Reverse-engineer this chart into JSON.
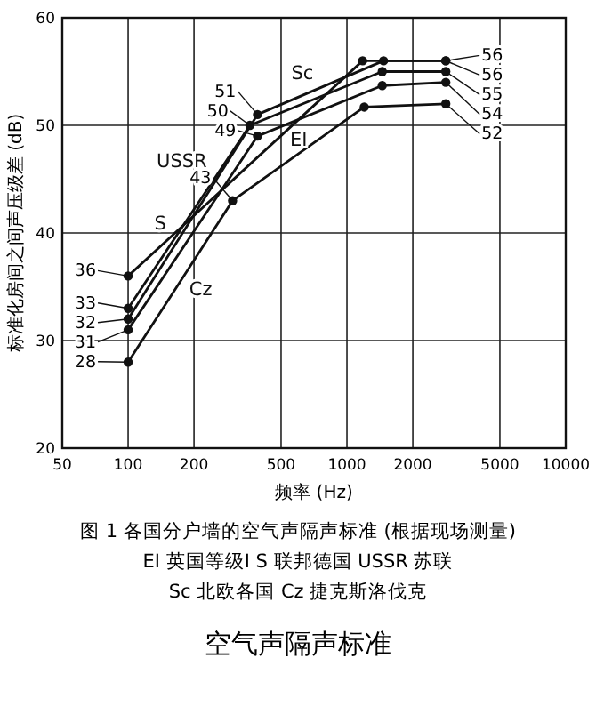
{
  "chart_data": {
    "type": "line",
    "title": "空气声隔声标准",
    "xlabel": "频率 (Hz)",
    "ylabel": "标准化房间之间声压级差 (dB)",
    "annotations": [
      "图 1  各国分户墙的空气声隔声标准 (根据现场测量)",
      "EI 英国等级Ⅰ  S 联邦德国  USSR 苏联",
      "Sc 北欧各国  Cz 捷克斯洛伐克"
    ],
    "log": "x",
    "xlim": [
      50,
      10000
    ],
    "xticks": [
      50,
      100,
      200,
      {
        "value": 500,
        "label": "500"
      },
      1000,
      2000,
      5000,
      10000
    ],
    "ylim": [
      20,
      60
    ],
    "yticks": [
      20,
      30,
      40,
      50,
      60
    ],
    "grid": true,
    "marker": "circle",
    "line_style": "solid",
    "series": [
      {
        "name": "S",
        "color": "#111111",
        "x": [
          100,
          1180,
          2830
        ],
        "values": [
          36,
          56,
          56
        ],
        "value_labels": [
          "36",
          null,
          "56"
        ]
      },
      {
        "name": "Sc",
        "color": "#111111",
        "x": [
          100,
          390,
          1470,
          2830
        ],
        "values": [
          32,
          51,
          56,
          56
        ],
        "value_labels": [
          "32",
          "51",
          null,
          "56"
        ]
      },
      {
        "name": "USSR",
        "color": "#111111",
        "x": [
          100,
          360,
          1450,
          2830
        ],
        "values": [
          33,
          50,
          55,
          55
        ],
        "value_labels": [
          "33",
          "50",
          null,
          "55"
        ]
      },
      {
        "name": "EI",
        "color": "#111111",
        "x": [
          100,
          390,
          1450,
          2830
        ],
        "values": [
          31,
          49,
          53.7,
          54
        ],
        "value_labels": [
          "31",
          "49",
          null,
          "54"
        ]
      },
      {
        "name": "Cz",
        "color": "#111111",
        "x": [
          100,
          300,
          1200,
          2830
        ],
        "values": [
          28,
          43,
          51.7,
          52
        ],
        "value_labels": [
          "28",
          "43",
          null,
          "52"
        ]
      }
    ]
  }
}
